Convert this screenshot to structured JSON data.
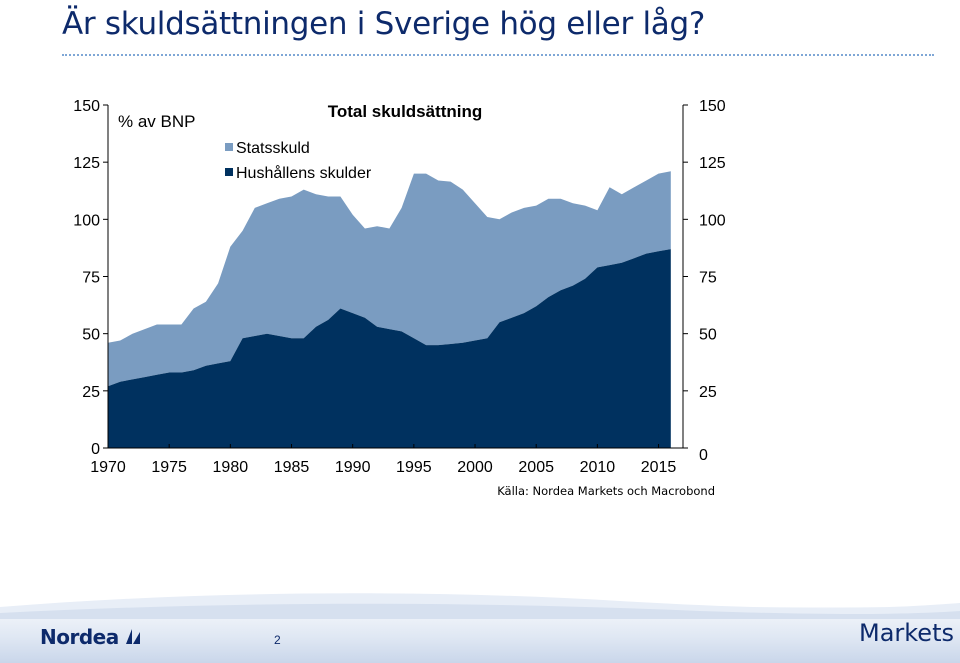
{
  "slide": {
    "title": "Är skuldsättningen i Sverige hög eller låg?",
    "page_number": "2",
    "brand_left": "Nordea",
    "brand_right": "Markets"
  },
  "colors": {
    "title": "#0d2a6b",
    "statsskuld": "#7a9cc1",
    "hushall": "#00315f",
    "axis_text": "#000000"
  },
  "chart_data": {
    "type": "area",
    "title": "Total skuldsättning",
    "ylabel": "% av BNP",
    "source": "Källa: Nordea Markets och Macrobond",
    "ylim": [
      0,
      150
    ],
    "yticks": [
      0,
      25,
      50,
      75,
      100,
      125,
      150
    ],
    "ytick_labels_left": [
      "0",
      "25",
      "50",
      "75",
      "100",
      "125",
      "150"
    ],
    "ytick_labels_right": [
      "0",
      "25",
      "50",
      "75",
      "100",
      "125",
      "150"
    ],
    "xlim": [
      1970,
      2017
    ],
    "xticks": [
      1970,
      1975,
      1980,
      1985,
      1990,
      1995,
      2000,
      2005,
      2010,
      2015
    ],
    "xtick_labels": [
      "1970",
      "1975",
      "1980",
      "1985",
      "1990",
      "1995",
      "2000",
      "2005",
      "2010",
      "2015"
    ],
    "stacked": true,
    "legend_position": "top-center",
    "grid": false,
    "x": [
      1970,
      1971,
      1972,
      1973,
      1974,
      1975,
      1976,
      1977,
      1978,
      1979,
      1980,
      1981,
      1982,
      1983,
      1984,
      1985,
      1986,
      1987,
      1988,
      1989,
      1990,
      1991,
      1992,
      1993,
      1994,
      1995,
      1996,
      1997,
      1998,
      1999,
      2000,
      2001,
      2002,
      2003,
      2004,
      2005,
      2006,
      2007,
      2008,
      2009,
      2010,
      2011,
      2012,
      2013,
      2014,
      2015,
      2016
    ],
    "series": [
      {
        "name": "Hushållens skulder",
        "color": "#00315f",
        "values": [
          27,
          29,
          30,
          31,
          32,
          33,
          33,
          34,
          36,
          37,
          38,
          48,
          49,
          50,
          49,
          48,
          48,
          53,
          56,
          61,
          59,
          57,
          53,
          52,
          51,
          48,
          45,
          45,
          45.5,
          46,
          47,
          48,
          55,
          57,
          59,
          62,
          66,
          69,
          71,
          74,
          79,
          80,
          81,
          83,
          85,
          86,
          87
        ]
      },
      {
        "name": "Statsskuld",
        "color": "#7a9cc1",
        "values": [
          19,
          18,
          20,
          21,
          22,
          21,
          21,
          27,
          28,
          35,
          50,
          47,
          56,
          57,
          60,
          62,
          65,
          58,
          54,
          49,
          43,
          39,
          44,
          44,
          54,
          72,
          75,
          72,
          71,
          67,
          60,
          53,
          45,
          46,
          46,
          44,
          43,
          40,
          36,
          32,
          25,
          34,
          30,
          31,
          32,
          34,
          34
        ]
      }
    ]
  }
}
